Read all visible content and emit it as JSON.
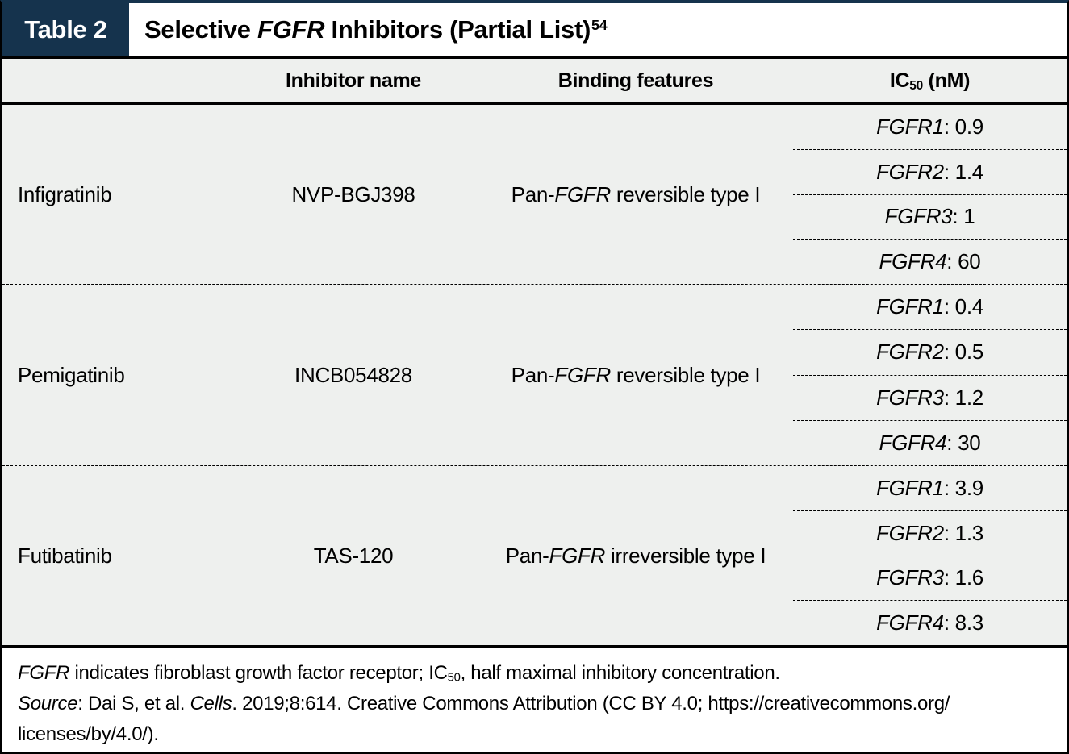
{
  "colors": {
    "badge_bg": "#15334d",
    "table_bg": "#eef0ee",
    "border": "#000000",
    "footer_bg": "#ffffff"
  },
  "header": {
    "badge": "Table 2",
    "title": {
      "prefix": "Selective ",
      "gene": "FGFR",
      "suffix": " Inhibitors (Partial List)",
      "citation": "54"
    }
  },
  "columns": {
    "inhibitor": "Inhibitor name",
    "binding": "Binding features",
    "ic50": {
      "prefix": "IC",
      "sub": "50",
      "suffix": " (nM)"
    }
  },
  "misc": {
    "ic50_separator": ": "
  },
  "rows": [
    {
      "drug": "Infigratinib",
      "inhibitor": "NVP-BGJ398",
      "binding": {
        "pre": "Pan-",
        "gene": "FGFR",
        "post": " reversible type I"
      },
      "ic50": [
        {
          "label": "FGFR1",
          "value": "0.9"
        },
        {
          "label": "FGFR2",
          "value": "1.4"
        },
        {
          "label": "FGFR3",
          "value": "1"
        },
        {
          "label": "FGFR4",
          "value": "60"
        }
      ]
    },
    {
      "drug": "Pemigatinib",
      "inhibitor": "INCB054828",
      "binding": {
        "pre": "Pan-",
        "gene": "FGFR",
        "post": " reversible type I"
      },
      "ic50": [
        {
          "label": "FGFR1",
          "value": "0.4"
        },
        {
          "label": "FGFR2",
          "value": "0.5"
        },
        {
          "label": "FGFR3",
          "value": "1.2"
        },
        {
          "label": "FGFR4",
          "value": "30"
        }
      ]
    },
    {
      "drug": "Futibatinib",
      "inhibitor": "TAS-120",
      "binding": {
        "pre": "Pan-",
        "gene": "FGFR",
        "post": " irreversible type I"
      },
      "ic50": [
        {
          "label": "FGFR1",
          "value": "3.9"
        },
        {
          "label": "FGFR2",
          "value": "1.3"
        },
        {
          "label": "FGFR3",
          "value": "1.6"
        },
        {
          "label": "FGFR4",
          "value": "8.3"
        }
      ]
    }
  ],
  "footnote": {
    "abbrev": {
      "gene": "FGFR",
      "mid": " indicates fibroblast growth factor receptor; IC",
      "sub": "50",
      "end": ", half maximal inhibitory concentration."
    },
    "source": {
      "label": "Source",
      "mid": ": Dai S, et al. ",
      "journal": "Cells",
      "end": ". 2019;8:614. Creative Commons Attribution (CC BY 4.0; https://creativecommons.org/",
      "wrap": "licenses/by/4.0/)."
    }
  }
}
